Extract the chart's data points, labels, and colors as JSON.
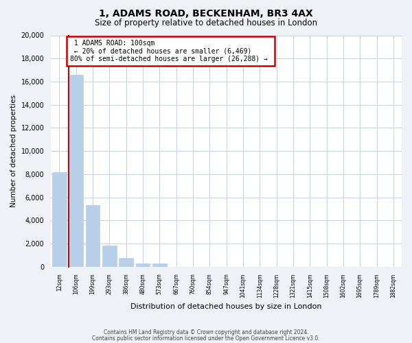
{
  "title": "1, ADAMS ROAD, BECKENHAM, BR3 4AX",
  "subtitle": "Size of property relative to detached houses in London",
  "xlabel": "Distribution of detached houses by size in London",
  "ylabel": "Number of detached properties",
  "bar_labels": [
    "12sqm",
    "106sqm",
    "199sqm",
    "293sqm",
    "386sqm",
    "480sqm",
    "573sqm",
    "667sqm",
    "760sqm",
    "854sqm",
    "947sqm",
    "1041sqm",
    "1134sqm",
    "1228sqm",
    "1321sqm",
    "1415sqm",
    "1508sqm",
    "1602sqm",
    "1695sqm",
    "1789sqm",
    "1882sqm"
  ],
  "bar_values": [
    8200,
    16600,
    5300,
    1850,
    780,
    270,
    270,
    0,
    0,
    0,
    0,
    0,
    0,
    0,
    0,
    0,
    0,
    0,
    0,
    0,
    0
  ],
  "bar_color": "#b8cfe8",
  "annotation_text_line1": "1 ADAMS ROAD: 100sqm",
  "annotation_text_line2": "← 20% of detached houses are smaller (6,469)",
  "annotation_text_line3": "80% of semi-detached houses are larger (26,288) →",
  "marker_color": "#cc0000",
  "ylim": [
    0,
    20000
  ],
  "yticks": [
    0,
    2000,
    4000,
    6000,
    8000,
    10000,
    12000,
    14000,
    16000,
    18000,
    20000
  ],
  "footnote_line1": "Contains HM Land Registry data © Crown copyright and database right 2024.",
  "footnote_line2": "Contains public sector information licensed under the Open Government Licence v3.0.",
  "bg_color": "#eef2f7",
  "plot_bg_color": "#ffffff",
  "grid_color": "#c8d4e0"
}
